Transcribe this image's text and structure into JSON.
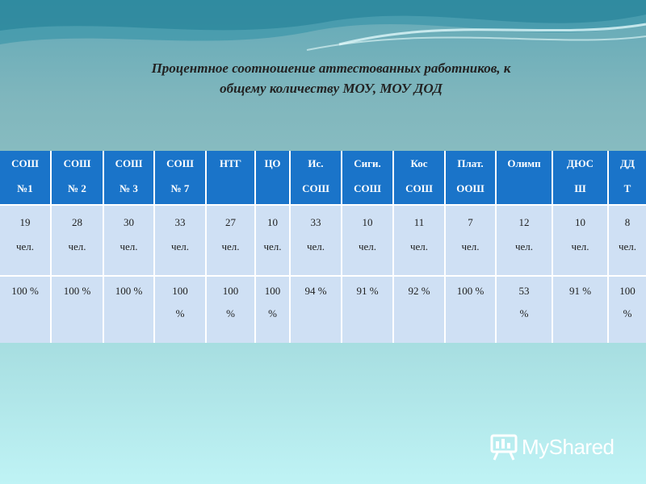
{
  "title_lines": [
    "Процентное соотношение аттестованных работников, к",
    "общему количеству МОУ, МОУ ДОД"
  ],
  "table": {
    "columns": [
      {
        "h": [
          "СОШ",
          "№1"
        ],
        "count": [
          "19",
          "чел."
        ],
        "pct": [
          "100 %"
        ]
      },
      {
        "h": [
          "СОШ",
          "№ 2"
        ],
        "count": [
          "28",
          "чел."
        ],
        "pct": [
          "100 %"
        ]
      },
      {
        "h": [
          "СОШ",
          "№ 3"
        ],
        "count": [
          "30",
          "чел."
        ],
        "pct": [
          "100 %"
        ]
      },
      {
        "h": [
          "СОШ",
          "№ 7"
        ],
        "count": [
          "33",
          "чел."
        ],
        "pct": [
          "100",
          "%"
        ]
      },
      {
        "h": [
          "НТГ"
        ],
        "count": [
          "27",
          "чел."
        ],
        "pct": [
          "100",
          "%"
        ]
      },
      {
        "h": [
          "ЦО"
        ],
        "count": [
          "10",
          "чел."
        ],
        "pct": [
          "100",
          "%"
        ]
      },
      {
        "h": [
          "Ис.",
          "СОШ"
        ],
        "count": [
          "33",
          "чел."
        ],
        "pct": [
          "94 %"
        ]
      },
      {
        "h": [
          "Сиги.",
          "СОШ"
        ],
        "count": [
          "10",
          "чел."
        ],
        "pct": [
          "91 %"
        ]
      },
      {
        "h": [
          "Кос",
          "СОШ"
        ],
        "count": [
          "11",
          "чел."
        ],
        "pct": [
          "92 %"
        ]
      },
      {
        "h": [
          "Плат.",
          "ООШ"
        ],
        "count": [
          "7",
          "чел."
        ],
        "pct": [
          "100 %"
        ]
      },
      {
        "h": [
          "Олимп"
        ],
        "count": [
          "12",
          "чел."
        ],
        "pct": [
          "53",
          "%"
        ]
      },
      {
        "h": [
          "ДЮС",
          "Ш"
        ],
        "count": [
          "10",
          "чел."
        ],
        "pct": [
          "91 %"
        ]
      },
      {
        "h": [
          "ДД",
          "Т"
        ],
        "count": [
          "8",
          "чел."
        ],
        "pct": [
          "100",
          "%"
        ]
      }
    ]
  },
  "watermark": {
    "text": "MyShared",
    "icon": "presentation-board-icon"
  },
  "colors": {
    "header_bg": "#1a74c9",
    "cell_bg": "#cfe0f4"
  }
}
